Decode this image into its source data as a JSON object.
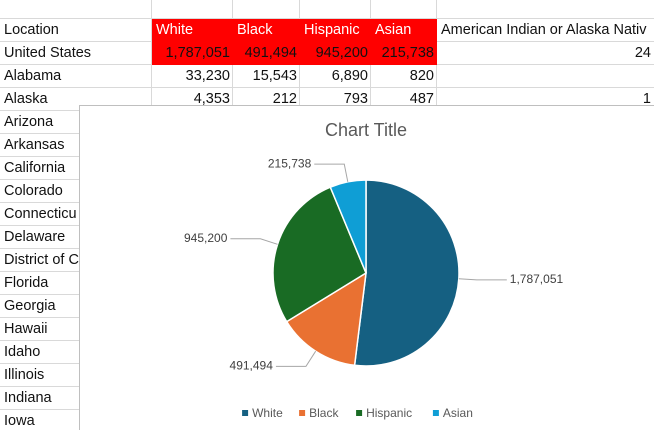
{
  "sheet": {
    "header": [
      "Location",
      "White",
      "Black",
      "Hispanic",
      "Asian",
      "American Indian or Alaska Nativ"
    ],
    "rows": [
      [
        "United States",
        "1,787,051",
        "491,494",
        "945,200",
        "215,738",
        "24"
      ],
      [
        "Alabama",
        "33,230",
        "15,543",
        "6,890",
        "820",
        null
      ],
      [
        "Alaska",
        "4,353",
        "212",
        "793",
        "487",
        "1"
      ],
      [
        "Arizona"
      ],
      [
        "Arkansas"
      ],
      [
        "California"
      ],
      [
        "Colorado"
      ],
      [
        "Connecticu"
      ],
      [
        "Delaware"
      ],
      [
        "District of C"
      ],
      [
        "Florida"
      ],
      [
        "Georgia"
      ],
      [
        "Hawaii"
      ],
      [
        "Idaho"
      ],
      [
        "Illinois"
      ],
      [
        "Indiana"
      ],
      [
        "Iowa"
      ]
    ]
  },
  "chart_data": {
    "type": "pie",
    "title": "Chart Title",
    "categories": [
      "White",
      "Black",
      "Hispanic",
      "Asian"
    ],
    "values": [
      1787051,
      491494,
      945200,
      215738
    ],
    "value_labels": [
      "1,787,051",
      "491,494",
      "945,200",
      "215,738"
    ],
    "colors": [
      "#156082",
      "#e97132",
      "#196b24",
      "#0f9ed5"
    ],
    "legend": "bottom"
  }
}
